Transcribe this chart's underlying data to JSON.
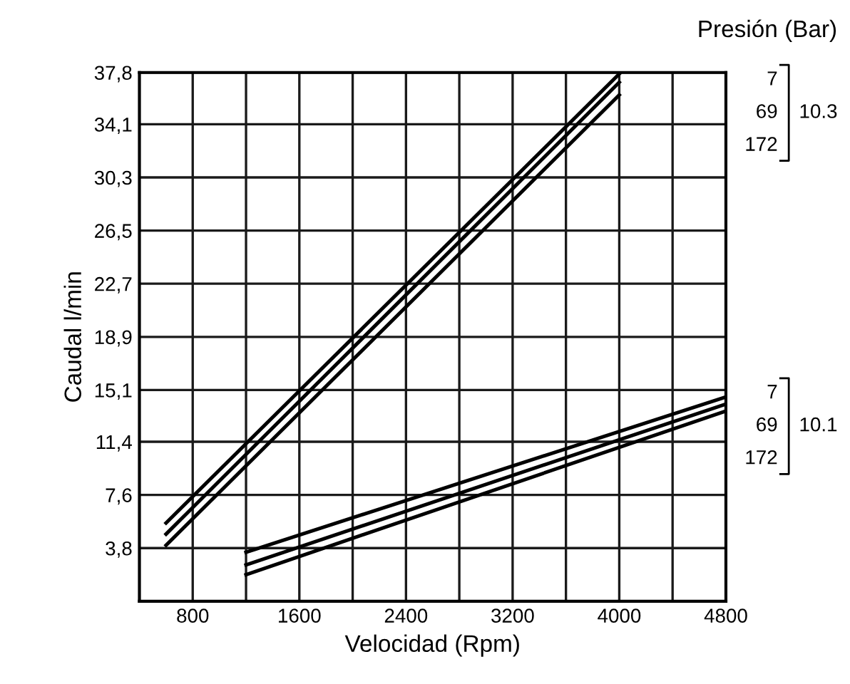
{
  "chart_data": {
    "type": "line",
    "xlabel": "Velocidad (Rpm)",
    "ylabel": "Caudal l/min",
    "xlim": [
      400,
      4800
    ],
    "ylim": [
      0,
      37.8
    ],
    "xticks": [
      {
        "value": 400,
        "label": null
      },
      800,
      {
        "value": 1200,
        "label": null
      },
      1600,
      {
        "value": 2000,
        "label": null
      },
      2400,
      {
        "value": 2800,
        "label": null
      },
      3200,
      {
        "value": 3600,
        "label": null
      },
      4000,
      {
        "value": 4400,
        "label": null
      },
      4800
    ],
    "yticks": [
      {
        "value": 3.8,
        "label": "3,8"
      },
      {
        "value": 7.6,
        "label": "7,6"
      },
      {
        "value": 11.4,
        "label": "11,4"
      },
      {
        "value": 15.1,
        "label": "15,1"
      },
      {
        "value": 18.9,
        "label": "18,9"
      },
      {
        "value": 22.7,
        "label": "22,7"
      },
      {
        "value": 26.5,
        "label": "26,5"
      },
      {
        "value": 30.3,
        "label": "30,3"
      },
      {
        "value": 34.1,
        "label": "34,1"
      },
      {
        "value": 37.8,
        "label": "37,8"
      }
    ],
    "grid": true,
    "marker": "none",
    "line_style": "solid",
    "series": [
      {
        "color": "#000000",
        "x": [
          600,
          4000
        ],
        "values": [
          5.6,
          37.7
        ]
      },
      {
        "color": "#000000",
        "x": [
          600,
          4000
        ],
        "values": [
          4.8,
          37.1
        ]
      },
      {
        "color": "#000000",
        "x": [
          600,
          4000
        ],
        "values": [
          4.0,
          36.2
        ]
      },
      {
        "color": "#000000",
        "x": [
          1200,
          4800
        ],
        "values": [
          3.5,
          14.6
        ]
      },
      {
        "color": "#000000",
        "x": [
          1200,
          4800
        ],
        "values": [
          2.6,
          14.1
        ]
      },
      {
        "color": "#000000",
        "x": [
          1200,
          4800
        ],
        "values": [
          1.9,
          13.6
        ]
      }
    ],
    "annotations": [
      "Presión (Bar)",
      "7",
      "69",
      "172",
      "10.3",
      "7",
      "69",
      "172",
      "10.1"
    ]
  }
}
